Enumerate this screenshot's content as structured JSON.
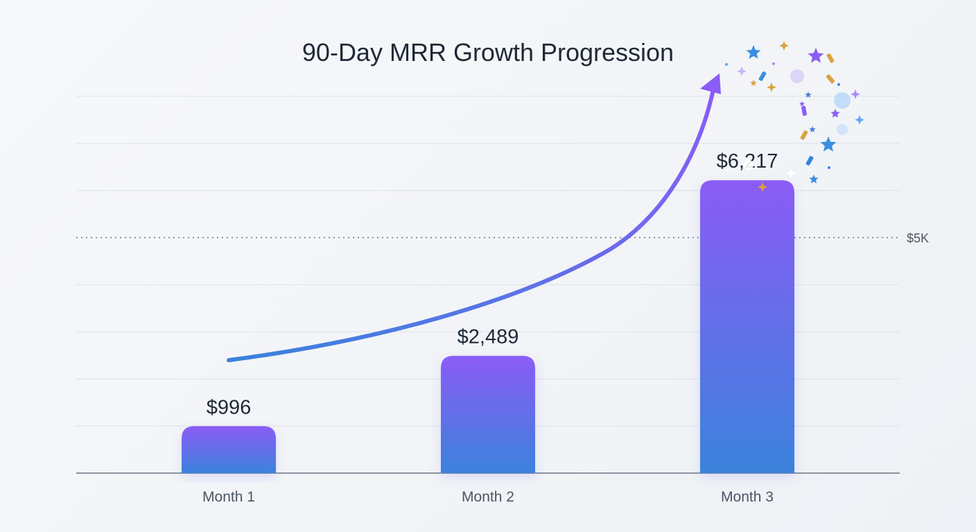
{
  "chart_data": {
    "type": "bar",
    "title": "90-Day MRR Growth Progression",
    "xlabel": "",
    "ylabel": "",
    "categories": [
      "Month 1",
      "Month 2",
      "Month 3"
    ],
    "values": [
      996,
      2489,
      6217
    ],
    "value_labels": [
      "$996",
      "$2,489",
      "$6,217"
    ],
    "ylim": [
      0,
      8000
    ],
    "grid": true,
    "reference_line": {
      "value": 5000,
      "label": "$5K",
      "style": "dotted"
    },
    "trend_arrow": true,
    "colors": {
      "bar_top": "#8b5cf6",
      "bar_bottom": "#3b82dc",
      "arrow_start": "#3b82dc",
      "arrow_end": "#8b5cf6",
      "grid": "#dde1e6",
      "axis": "#6b7280"
    }
  }
}
